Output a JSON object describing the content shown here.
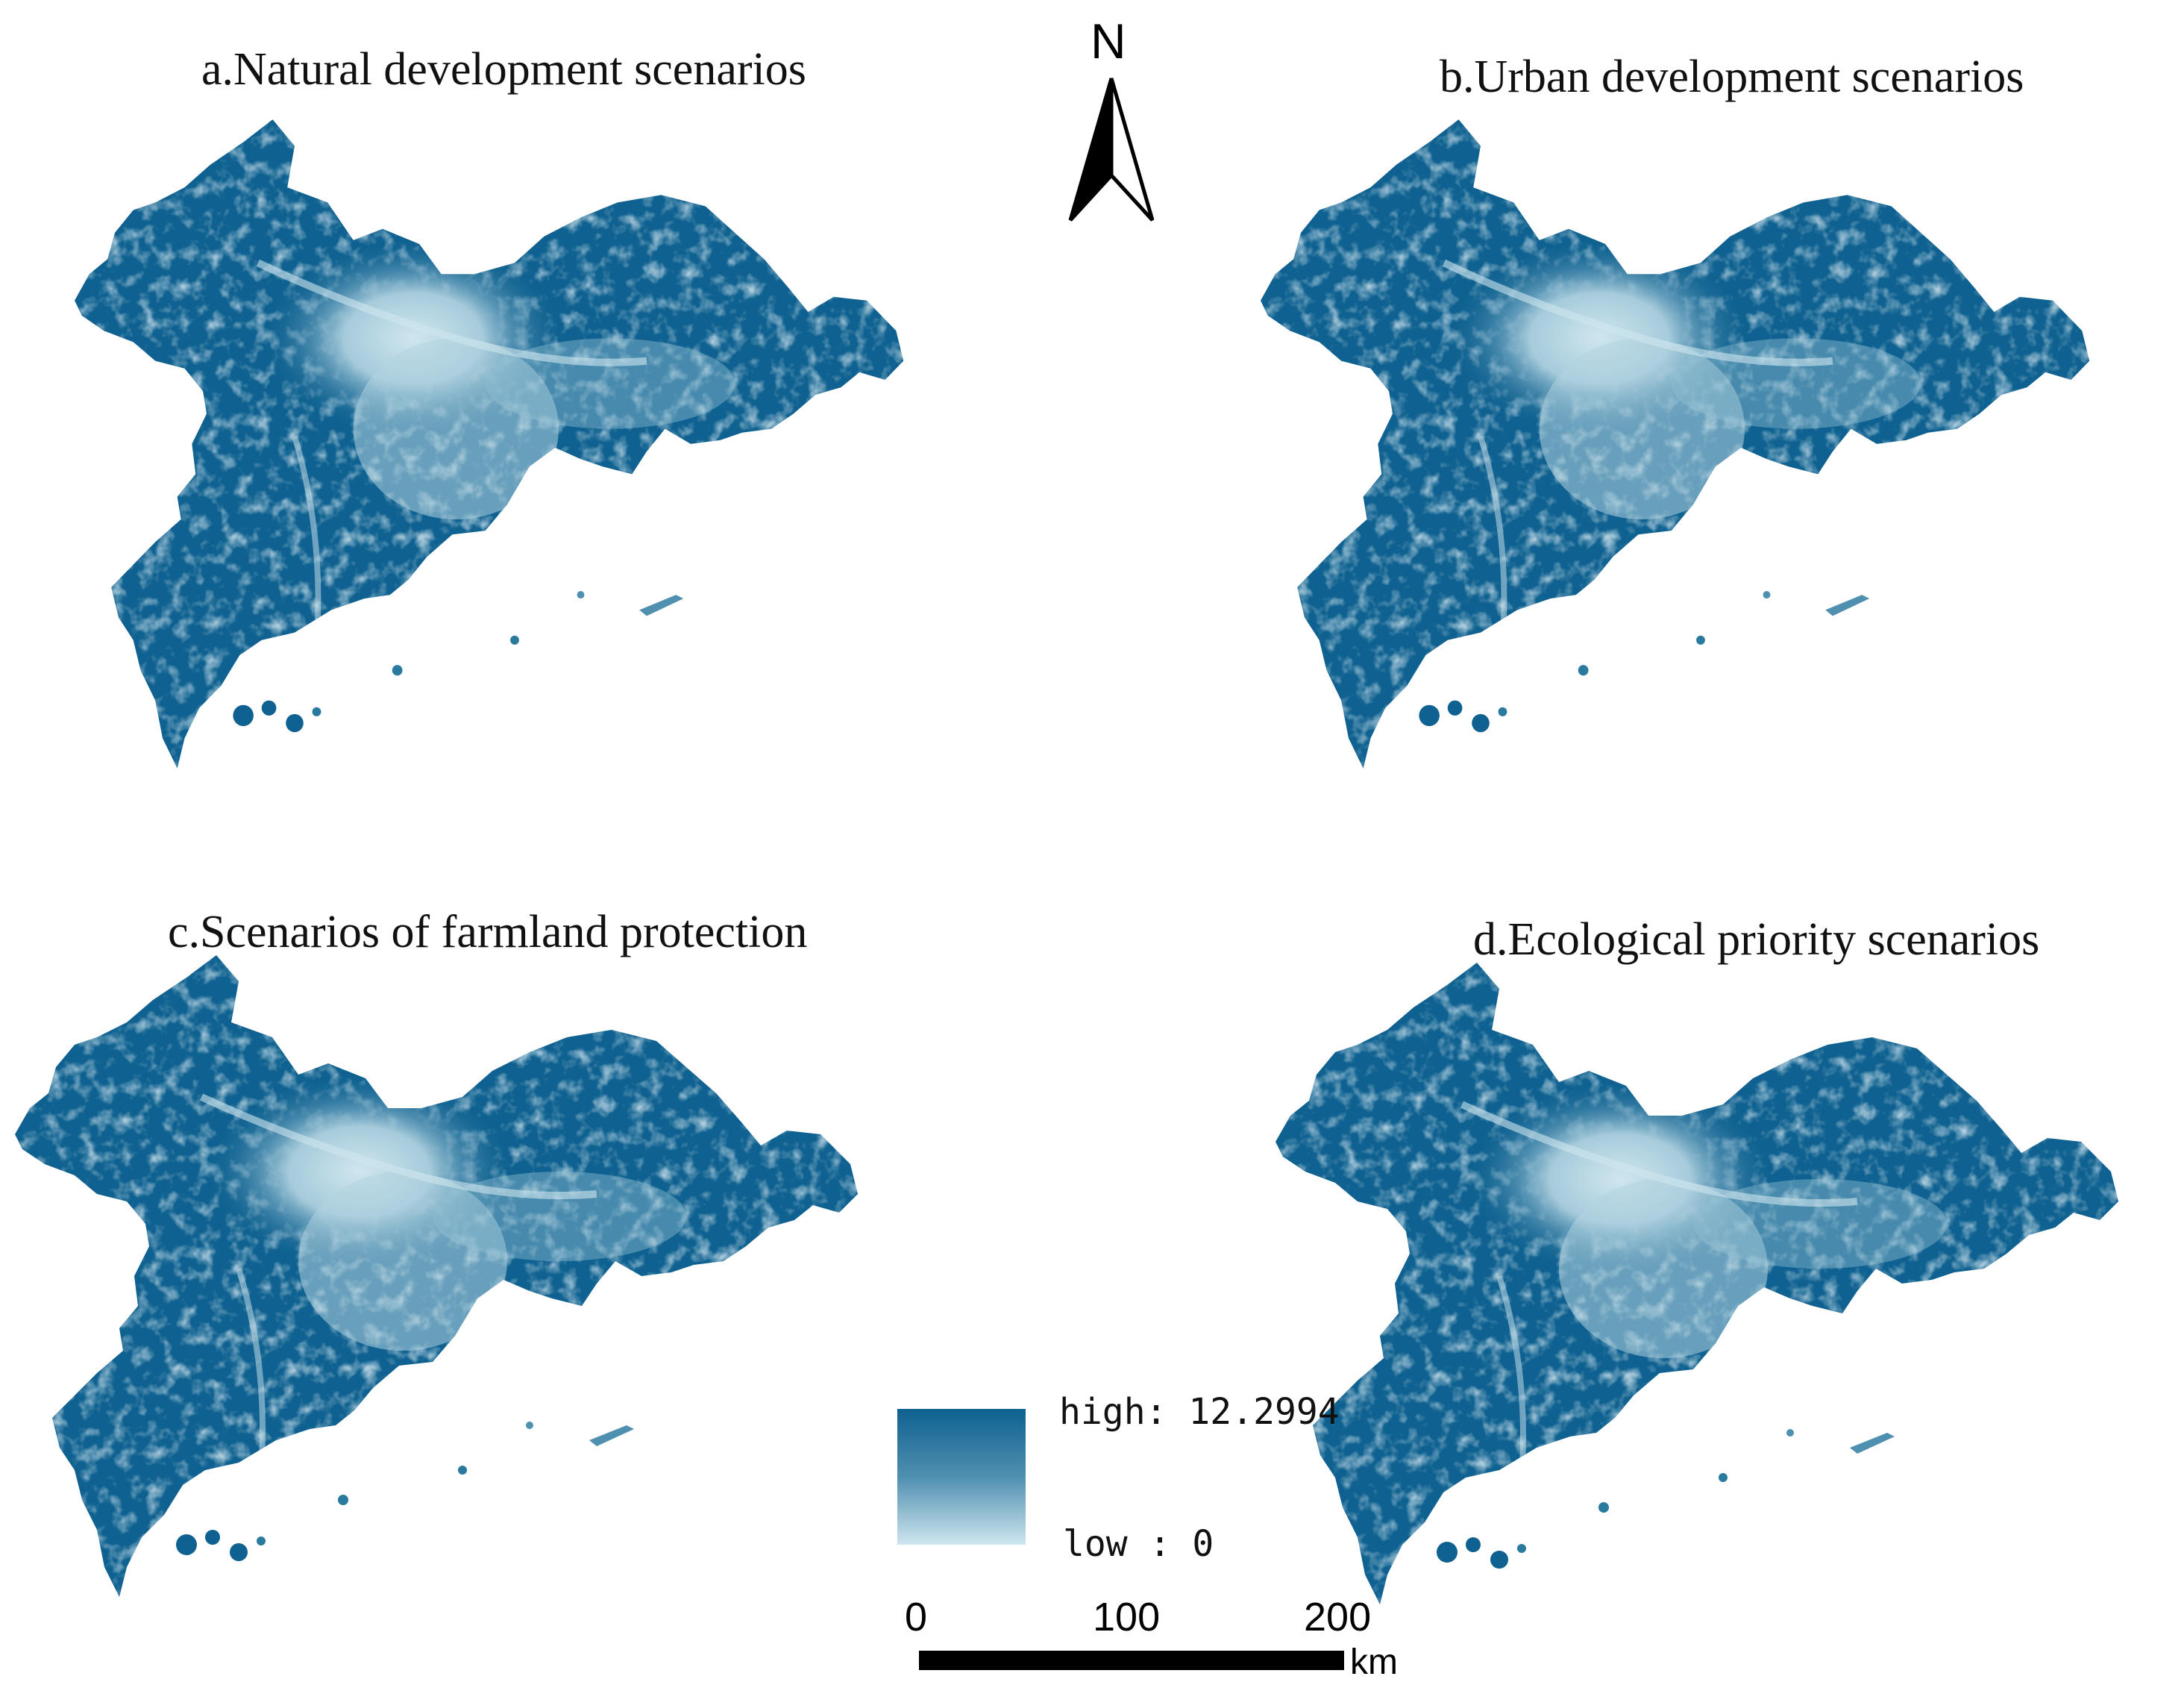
{
  "panels": [
    {
      "id": "a",
      "title": "a.Natural development scenarios"
    },
    {
      "id": "b",
      "title": "b.Urban development scenarios"
    },
    {
      "id": "c",
      "title": "c.Scenarios of farmland protection"
    },
    {
      "id": "d",
      "title": "d.Ecological priority scenarios"
    }
  ],
  "north_arrow": {
    "label": "N"
  },
  "legend": {
    "high_label": "high: 12.2994",
    "low_label": "low : 0",
    "high_color": "#0e6190",
    "low_color": "#cfe6ee"
  },
  "scale_bar": {
    "ticks": [
      "0",
      "100",
      "200"
    ],
    "unit": "km"
  },
  "colors": {
    "high": "#0e6190",
    "mid": "#4f8fb0",
    "low": "#cfe6ee"
  }
}
